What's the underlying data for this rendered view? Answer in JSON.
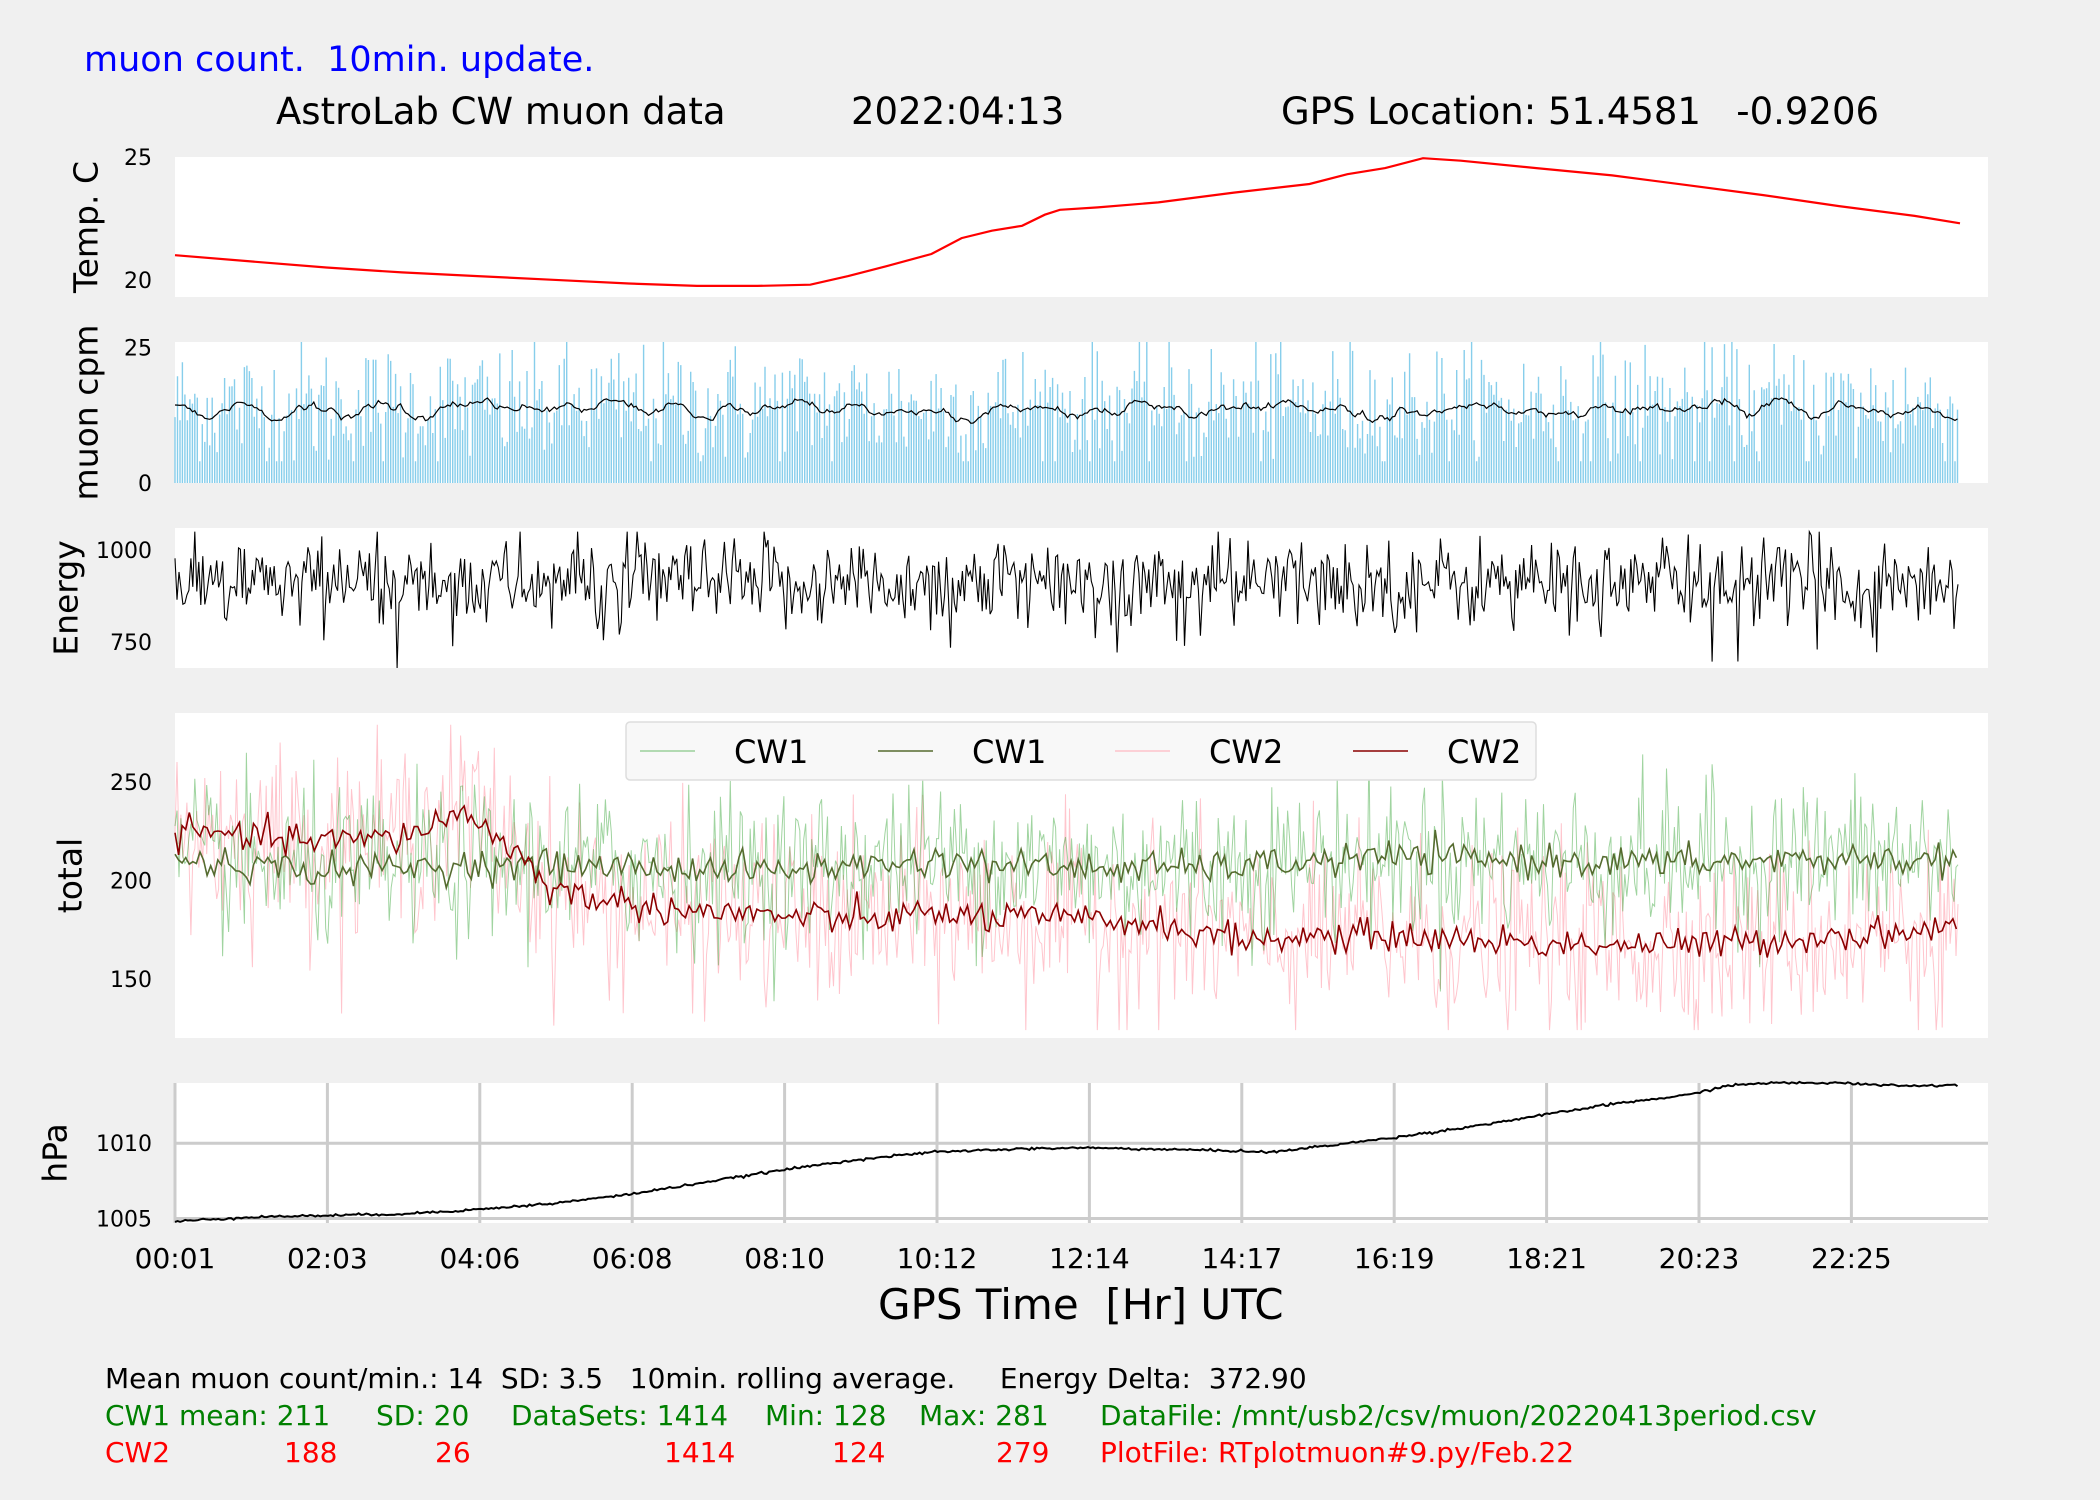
{
  "header": {
    "update_note": "muon count.  10min. update.",
    "title": "AstroLab CW muon data",
    "date": "2022:04:13",
    "location": "GPS Location: 51.4581   -0.9206"
  },
  "colors": {
    "background": "#f0f0f0",
    "panel": "#ffffff",
    "temp_line": "#ff0000",
    "muon_bars": "#87ceeb",
    "cw1_raw": "#2ca02c",
    "cw1_avg": "#556b2f",
    "cw2_raw": "#ffb6c1",
    "cw2_avg": "#8b0000",
    "note_blue": "#0000ff",
    "stats_green": "#008000",
    "stats_red": "#ff0000"
  },
  "x_axis": {
    "label": "GPS Time  [Hr] UTC",
    "ticks": [
      "00:01",
      "02:03",
      "04:06",
      "06:08",
      "08:10",
      "10:12",
      "12:14",
      "14:17",
      "16:19",
      "18:21",
      "20:23",
      "22:25"
    ],
    "range_hours": [
      0.0167,
      24.0
    ]
  },
  "chart_data": [
    {
      "type": "line",
      "ylabel": "Temp. C",
      "yticks": [
        "20",
        "25"
      ],
      "ylim": [
        19.3,
        25.0
      ],
      "grid": false,
      "series": [
        {
          "x": [
            0.0,
            1.0,
            2.0,
            3.0,
            4.0,
            5.0,
            6.0,
            6.9,
            7.7,
            8.4,
            8.9,
            9.4,
            10.0,
            10.4,
            10.8,
            11.2,
            11.5,
            11.7,
            12.2,
            13.0,
            14.0,
            15.0,
            15.5,
            16.0,
            16.5,
            17.0,
            18.0,
            19.0,
            20.0,
            21.0,
            22.0,
            23.0,
            23.6
          ],
          "y": [
            21.0,
            20.75,
            20.5,
            20.3,
            20.15,
            20.0,
            19.85,
            19.75,
            19.75,
            19.8,
            20.15,
            20.55,
            21.05,
            21.7,
            22.0,
            22.2,
            22.65,
            22.85,
            22.95,
            23.15,
            23.55,
            23.9,
            24.3,
            24.55,
            24.95,
            24.85,
            24.55,
            24.25,
            23.85,
            23.45,
            23.0,
            22.6,
            22.3
          ]
        }
      ]
    },
    {
      "type": "bar",
      "ylabel": "muon cpm",
      "yticks": [
        "0",
        "25"
      ],
      "ylim": [
        0,
        26
      ],
      "grid": false,
      "mean": 14,
      "sd": 3.5,
      "max_shown": 26,
      "bar_count": 1414,
      "rolling_average_window": "10min.",
      "note": "bars = counts per minute; black line = 10min. rolling average (~13-15)"
    },
    {
      "type": "line",
      "ylabel": "Energy",
      "yticks": [
        "750",
        "1000"
      ],
      "ylim": [
        680,
        1060
      ],
      "grid": false,
      "mean": 910,
      "range": [
        680,
        1050
      ],
      "delta": 372.9
    },
    {
      "type": "line",
      "ylabel": "total",
      "yticks": [
        "150",
        "200",
        "250"
      ],
      "ylim": [
        120,
        285
      ],
      "grid": false,
      "legend": {
        "entries": [
          "CW1",
          "CW1",
          "CW2",
          "CW2"
        ],
        "position": "top-center",
        "ncol": 4
      },
      "series": [
        {
          "name": "CW1",
          "kind": "raw",
          "mean": 211,
          "sd": 20,
          "min": 128,
          "max": 281
        },
        {
          "name": "CW1",
          "kind": "rolling average",
          "x": [
            0,
            2,
            4,
            6,
            8,
            10,
            12,
            14,
            16,
            18,
            20,
            22,
            23.6
          ],
          "y": [
            210,
            205,
            208,
            207,
            205,
            210,
            206,
            207,
            212,
            210,
            209,
            211,
            210
          ]
        },
        {
          "name": "CW2",
          "kind": "raw",
          "mean": 188,
          "sd": 26,
          "min": 124,
          "max": 279
        },
        {
          "name": "CW2",
          "kind": "rolling average",
          "x": [
            0,
            1,
            2,
            3,
            3.8,
            4.5,
            5,
            6,
            7,
            8,
            9,
            10,
            11,
            12,
            13,
            14,
            16,
            18,
            20,
            22,
            23.6
          ],
          "y": [
            225,
            222,
            220,
            222,
            235,
            215,
            195,
            188,
            184,
            182,
            180,
            183,
            181,
            180,
            178,
            170,
            172,
            168,
            167,
            172,
            176
          ]
        }
      ]
    },
    {
      "type": "line",
      "ylabel": "hPa",
      "yticks": [
        "1005",
        "1010"
      ],
      "ylim": [
        1004.7,
        1014.0
      ],
      "grid": true,
      "series": [
        {
          "x": [
            0.0,
            1.0,
            2.0,
            3.0,
            4.0,
            5.0,
            6.0,
            7.0,
            8.0,
            9.0,
            10.0,
            11.0,
            12.0,
            13.0,
            14.0,
            14.5,
            15.0,
            16.0,
            17.0,
            18.0,
            19.0,
            20.0,
            20.5,
            21.0,
            22.0,
            23.0,
            23.6
          ],
          "y": [
            1004.8,
            1005.1,
            1005.2,
            1005.3,
            1005.6,
            1006.0,
            1006.6,
            1007.4,
            1008.2,
            1008.9,
            1009.4,
            1009.6,
            1009.7,
            1009.6,
            1009.5,
            1009.4,
            1009.7,
            1010.3,
            1011.0,
            1011.8,
            1012.6,
            1013.2,
            1013.8,
            1014.0,
            1014.0,
            1013.8,
            1013.9
          ]
        }
      ]
    }
  ],
  "stats": {
    "line1": "Mean muon count/min.: 14  SD: 3.5   10min. rolling average.     Energy Delta:  372.90",
    "cw1": [
      "CW1 mean: 211",
      "SD: 20",
      "DataSets: 1414",
      "Min: 128",
      "Max: 281",
      "DataFile: /mnt/usb2/csv/muon/20220413period.csv"
    ],
    "cw2": [
      "CW2",
      "188",
      "26",
      "1414",
      "124",
      "279",
      "PlotFile: RTplotmuon#9.py/Feb.22"
    ]
  }
}
